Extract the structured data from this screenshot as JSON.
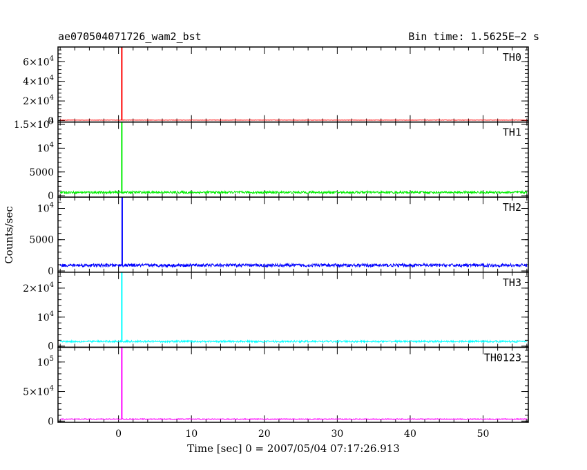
{
  "header": {
    "left_title": "ae070504071726_wam2_bst",
    "right_title": "Bin time: 1.5625E−2 s"
  },
  "chart_data": {
    "type": "line",
    "xlabel": "Time [sec] 0 = 2007/05/04 07:17:26.913",
    "ylabel": "Counts/sec",
    "xlim": [
      -8.3,
      56.2
    ],
    "x_data_range": [
      -8,
      56
    ],
    "x_ticks": [
      0,
      10,
      20,
      30,
      40,
      50
    ],
    "panels": [
      {
        "name": "TH0",
        "color": "#ff0000",
        "ylim": [
          -1500,
          75000
        ],
        "yticks": [
          {
            "v": 0,
            "t": "0"
          },
          {
            "v": 20000,
            "t": "2×10^4"
          },
          {
            "v": 40000,
            "t": "4×10^4"
          },
          {
            "v": 60000,
            "t": "6×10^4"
          }
        ],
        "baseline": 500,
        "noise": 200,
        "peak_x": 0.45,
        "peak_y": 75000
      },
      {
        "name": "TH1",
        "color": "#00ee00",
        "ylim": [
          -300,
          15500
        ],
        "yticks": [
          {
            "v": 0,
            "t": "0"
          },
          {
            "v": 5000,
            "t": "5000"
          },
          {
            "v": 10000,
            "t": "10^4"
          },
          {
            "v": 15000,
            "t": "1.5×10^4"
          }
        ],
        "baseline": 700,
        "noise": 250,
        "peak_x": 0.45,
        "peak_y": 15500
      },
      {
        "name": "TH2",
        "color": "#0000ff",
        "ylim": [
          -200,
          11800
        ],
        "yticks": [
          {
            "v": 0,
            "t": "0"
          },
          {
            "v": 5000,
            "t": "5000"
          },
          {
            "v": 10000,
            "t": "10^4"
          }
        ],
        "baseline": 900,
        "noise": 250,
        "peak_x": 0.5,
        "peak_y": 11800
      },
      {
        "name": "TH3",
        "color": "#00ffff",
        "ylim": [
          -400,
          25500
        ],
        "yticks": [
          {
            "v": 0,
            "t": "0"
          },
          {
            "v": 10000,
            "t": "10^4"
          },
          {
            "v": 20000,
            "t": "2×10^4"
          }
        ],
        "baseline": 1600,
        "noise": 300,
        "peak_x": 0.45,
        "peak_y": 25500
      },
      {
        "name": "TH0123",
        "color": "#ff00ff",
        "ylim": [
          -2000,
          125000
        ],
        "yticks": [
          {
            "v": 0,
            "t": "0"
          },
          {
            "v": 50000,
            "t": "5×10^4"
          },
          {
            "v": 100000,
            "t": "10^5"
          }
        ],
        "baseline": 3500,
        "noise": 600,
        "peak_x": 0.45,
        "peak_y": 125000
      }
    ]
  }
}
